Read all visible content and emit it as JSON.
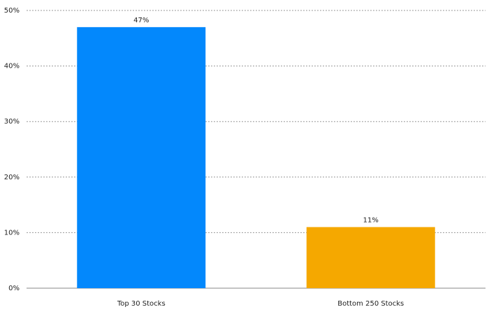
{
  "chart_data": {
    "type": "bar",
    "categories": [
      "Top 30 Stocks",
      "Bottom 250 Stocks"
    ],
    "values": [
      47,
      11
    ],
    "value_labels": [
      "47%",
      "11%"
    ],
    "colors": [
      "#0388fc",
      "#f5a800"
    ],
    "ylim": [
      0,
      50
    ],
    "yticks": [
      {
        "value": 0,
        "label": "0%"
      },
      {
        "value": 10,
        "label": "10%"
      },
      {
        "value": 20,
        "label": "20%"
      },
      {
        "value": 30,
        "label": "30%"
      },
      {
        "value": 40,
        "label": "40%"
      },
      {
        "value": 50,
        "label": "50%"
      }
    ],
    "grid": true
  }
}
